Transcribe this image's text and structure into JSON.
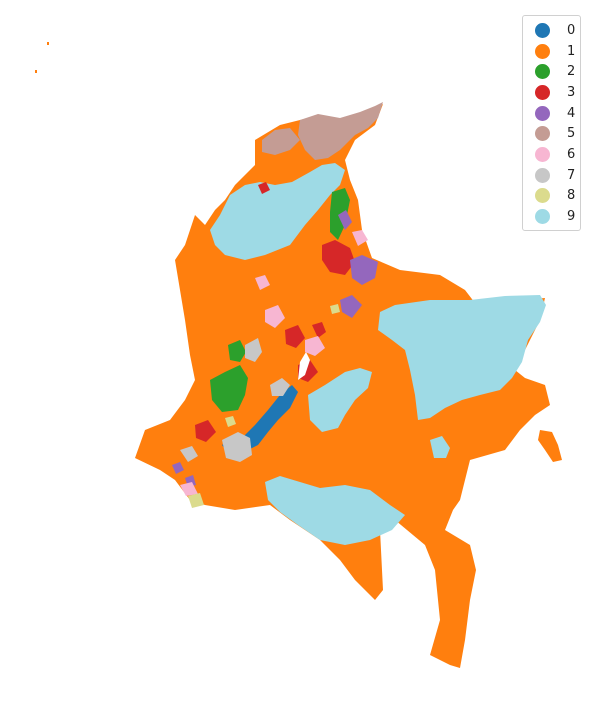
{
  "legend": {
    "entries": [
      {
        "label": "0",
        "color": "#1f77b4"
      },
      {
        "label": "1",
        "color": "#ff7f0e"
      },
      {
        "label": "2",
        "color": "#2ca02c"
      },
      {
        "label": "3",
        "color": "#d62728"
      },
      {
        "label": "4",
        "color": "#9467bd"
      },
      {
        "label": "5",
        "color": "#c49c94"
      },
      {
        "label": "6",
        "color": "#f7b6d2"
      },
      {
        "label": "7",
        "color": "#c7c7c7"
      },
      {
        "label": "8",
        "color": "#dbdb8d"
      },
      {
        "label": "9",
        "color": "#9edae5"
      }
    ]
  },
  "map": {
    "region": "Colombia municipalities",
    "legend_position": "top-right",
    "axes": "off"
  }
}
